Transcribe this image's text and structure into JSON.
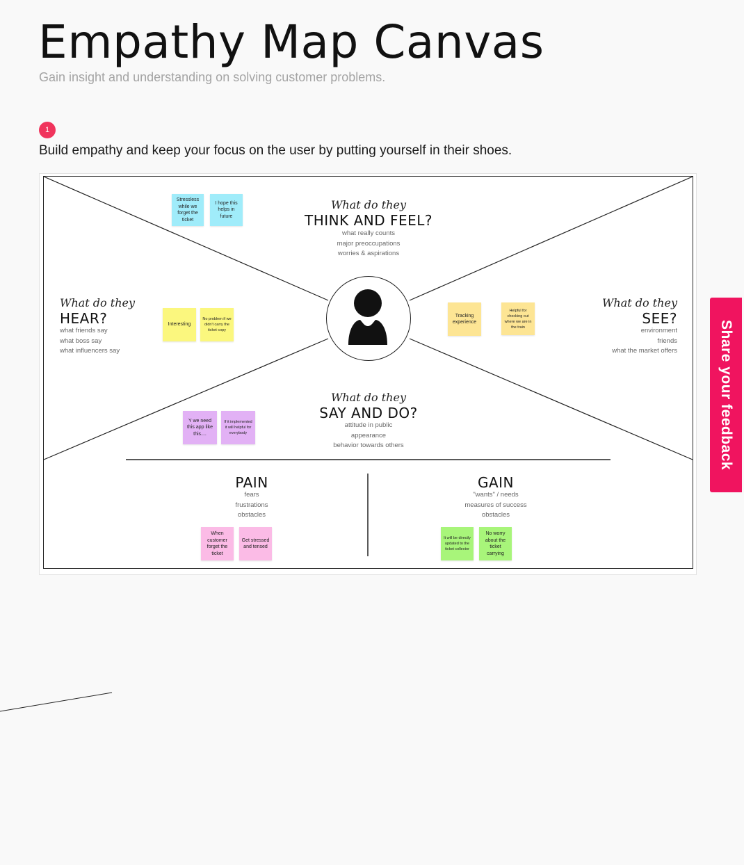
{
  "header": {
    "title": "Empathy Map Canvas",
    "subtitle": "Gain insight and understanding on solving customer problems."
  },
  "step": {
    "number": "1",
    "instruction": "Build empathy and keep your focus on the user by putting yourself in their shoes."
  },
  "canvas": {
    "think_feel": {
      "kicker": "What do they",
      "heading": "THINK AND FEEL?",
      "lines": [
        "what really counts",
        "major preoccupations",
        "worries & aspirations"
      ]
    },
    "hear": {
      "kicker": "What do they",
      "heading": "HEAR?",
      "lines": [
        "what friends say",
        "what boss say",
        "what influencers say"
      ]
    },
    "see": {
      "kicker": "What do they",
      "heading": "SEE?",
      "lines": [
        "environment",
        "friends",
        "what the market offers"
      ]
    },
    "say_do": {
      "kicker": "What do they",
      "heading": "SAY AND DO?",
      "lines": [
        "attitude in public",
        "appearance",
        "behavior towards others"
      ]
    },
    "pain": {
      "heading": "PAIN",
      "lines": [
        "fears",
        "frustrations",
        "obstacles"
      ]
    },
    "gain": {
      "heading": "GAIN",
      "lines": [
        "\"wants\" / needs",
        "measures of success",
        "obstacles"
      ]
    }
  },
  "notes": {
    "think_feel": [
      "Stressless while we forget the ticket",
      "I hope this helps in future"
    ],
    "hear": [
      "Interesting",
      "No problem if we didn't carry the ticket copy"
    ],
    "see": [
      "Tracking experience",
      "Helpful for checking out where we are in the train"
    ],
    "say_do": [
      "Y we need this app like this....",
      "If it implemented it will helpful for everybody"
    ],
    "pain": [
      "When customer forget the ticket",
      "Get stressed and tensed"
    ],
    "gain": [
      "It will be directly updated to the ticket collector",
      "No worry about the ticket carrying"
    ]
  },
  "colors": {
    "accent": "#f0345c",
    "feedback_tab": "#f0145f",
    "note_blue": "#a0ecfa",
    "note_yellow": "#fbf77e",
    "note_orange": "#fde594",
    "note_purple": "#e2b1f5",
    "note_pink": "#fbbbe6",
    "note_green": "#a8f57a"
  },
  "icons": {
    "persona": "user-avatar-icon"
  },
  "feedback": {
    "label": "Share your feedback"
  }
}
